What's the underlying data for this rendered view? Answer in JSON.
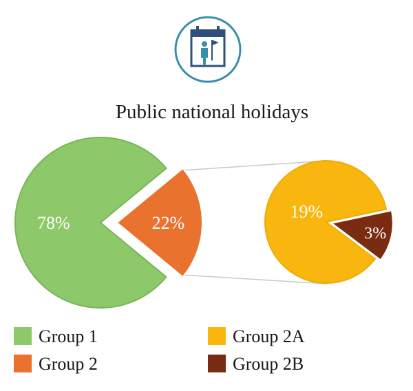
{
  "icon": "calendar-person-flag-icon",
  "chart_data": {
    "type": "pie",
    "title": "Public national holidays",
    "main": {
      "slices": [
        {
          "name": "Group 1",
          "value": 78,
          "label": "78%",
          "color": "#8dc96a"
        },
        {
          "name": "Group 2",
          "value": 22,
          "label": "22%",
          "color": "#e8722e"
        }
      ]
    },
    "breakdown": {
      "of": "Group 2",
      "slices": [
        {
          "name": "Group 2A",
          "value": 19,
          "label": "19%",
          "color": "#f9b60f"
        },
        {
          "name": "Group 2B",
          "value": 3,
          "label": "3%",
          "color": "#7a2c12"
        }
      ]
    },
    "legend": [
      {
        "name": "Group 1",
        "color": "#8dc96a"
      },
      {
        "name": "Group 2A",
        "color": "#f9b60f"
      },
      {
        "name": "Group 2",
        "color": "#e8722e"
      },
      {
        "name": "Group 2B",
        "color": "#7a2c12"
      }
    ],
    "legend_position": "bottom"
  }
}
